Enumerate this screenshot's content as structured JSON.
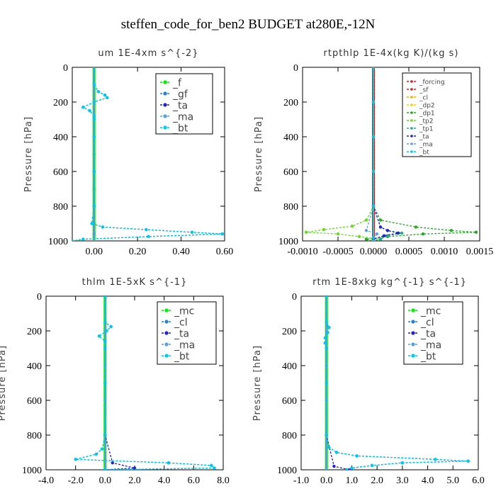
{
  "figure": {
    "title": "steffen_code_for_ben2  BUDGET at280E,-12N"
  },
  "chart_data": [
    {
      "type": "line",
      "title": "um  1E-4xm s^{-2}",
      "xlabel": "",
      "ylabel": "Pressure [hPa]",
      "xlim": [
        -0.1,
        0.6
      ],
      "ylim": [
        1000,
        0
      ],
      "xticks": [
        "0.00",
        "0.20",
        "0.40",
        "0.60"
      ],
      "xtick_values": [
        0.0,
        0.2,
        0.4,
        0.6
      ],
      "yticks": [
        "0",
        "200",
        "400",
        "600",
        "800",
        "1000"
      ],
      "ytick_values": [
        0,
        200,
        400,
        600,
        800,
        1000
      ],
      "legend_position": "top-right",
      "legend_size": "large",
      "series": [
        {
          "name": "_f",
          "color": "#00ee00",
          "y": [
            0,
            100,
            200,
            300,
            400,
            500,
            600,
            700,
            800,
            900,
            960,
            1000
          ],
          "x": [
            0,
            0,
            0,
            0,
            0,
            0,
            0,
            0,
            0,
            0,
            0,
            0
          ]
        },
        {
          "name": "_gf",
          "color": "#2a7fd4",
          "y": [
            0,
            100,
            140,
            160,
            175,
            200,
            230,
            250,
            280,
            300,
            400,
            600,
            800,
            900,
            920,
            935,
            950,
            960,
            975,
            990,
            1000
          ],
          "x": [
            0,
            0,
            0.02,
            0.05,
            0.06,
            0.0,
            -0.05,
            -0.02,
            0,
            0,
            0,
            0,
            0,
            -0.01,
            0.04,
            0.24,
            0.45,
            0.59,
            0.25,
            -0.05,
            -0.1
          ]
        },
        {
          "name": "_ta",
          "color": "#2222cc",
          "y": [
            0,
            200,
            400,
            600,
            800,
            960,
            1000
          ],
          "x": [
            0,
            0,
            0,
            0,
            0,
            0,
            0
          ]
        },
        {
          "name": "_ma",
          "color": "#5aa0e0",
          "y": [
            0,
            200,
            400,
            600,
            800,
            960,
            1000
          ],
          "x": [
            0,
            0,
            0,
            0,
            0,
            0,
            0
          ]
        },
        {
          "name": "_bt",
          "color": "#00c8f0",
          "y": [
            0,
            100,
            140,
            160,
            175,
            200,
            230,
            250,
            280,
            300,
            400,
            600,
            800,
            900,
            920,
            935,
            950,
            960,
            975,
            990,
            1000
          ],
          "x": [
            0,
            0,
            0.02,
            0.05,
            0.06,
            0.0,
            -0.05,
            -0.02,
            0,
            0,
            0,
            0,
            0,
            -0.01,
            0.04,
            0.24,
            0.45,
            0.59,
            0.25,
            -0.05,
            -0.1
          ]
        }
      ]
    },
    {
      "type": "line",
      "title": "rtpthlp  1E-4x(kg K)/(kg s)",
      "xlabel": "",
      "ylabel": "Pressure [hPa]",
      "xlim": [
        -0.001,
        0.0015
      ],
      "ylim": [
        1000,
        0
      ],
      "xticks": [
        "-0.0010",
        "-0.0005",
        "0.0000",
        "0.0005",
        "0.0010",
        "0.0015"
      ],
      "xtick_values": [
        -0.001,
        -0.0005,
        0.0,
        0.0005,
        0.001,
        0.0015
      ],
      "yticks": [
        "0",
        "200",
        "400",
        "600",
        "800",
        "1000"
      ],
      "ytick_values": [
        0,
        200,
        400,
        600,
        800,
        1000
      ],
      "legend_position": "top-right",
      "legend_size": "small",
      "series": [
        {
          "name": "_forcing",
          "color": "#cc2222",
          "y": [
            0,
            200,
            400,
            600,
            800,
            1000
          ],
          "x": [
            0,
            0,
            0,
            0,
            0,
            0
          ]
        },
        {
          "name": "_sf",
          "color": "#cc2222",
          "y": [
            0,
            200,
            400,
            600,
            800,
            1000
          ],
          "x": [
            0,
            0,
            0,
            0,
            0,
            0
          ]
        },
        {
          "name": "_cl",
          "color": "#ffaa00",
          "y": [
            0,
            200,
            400,
            600,
            800,
            1000
          ],
          "x": [
            0,
            0,
            0,
            0,
            0,
            0
          ]
        },
        {
          "name": "_dp2",
          "color": "#ffd000",
          "y": [
            0,
            200,
            400,
            600,
            800,
            1000
          ],
          "x": [
            0,
            0,
            0,
            0,
            0,
            0
          ]
        },
        {
          "name": "_dp1",
          "color": "#22aa22",
          "y": [
            0,
            800,
            880,
            920,
            940,
            950,
            960,
            975,
            990,
            1000
          ],
          "x": [
            0,
            0,
            0.0001,
            0.0006,
            0.0011,
            0.00145,
            0.0007,
            0.0002,
            -0.0001,
            0
          ]
        },
        {
          "name": "_tp2",
          "color": "#66dd22",
          "y": [
            0,
            800,
            880,
            915,
            935,
            950,
            960,
            975,
            990,
            1000
          ],
          "x": [
            0,
            0,
            -0.0001,
            -0.0003,
            -0.0007,
            -0.00095,
            -0.0005,
            -0.0002,
            0.0001,
            0
          ]
        },
        {
          "name": "_tp1",
          "color": "#22aa88",
          "y": [
            0,
            800,
            920,
            940,
            955,
            970,
            990,
            1000
          ],
          "x": [
            0,
            0,
            0.0001,
            0.0002,
            0.0004,
            0.0002,
            0.0001,
            0
          ]
        },
        {
          "name": "_ta",
          "color": "#2222cc",
          "y": [
            0,
            800,
            920,
            940,
            955,
            970,
            990,
            1000
          ],
          "x": [
            0,
            0,
            0.0001,
            0.0002,
            0.00035,
            0.00015,
            0,
            0
          ]
        },
        {
          "name": "_ma",
          "color": "#5aa0e0",
          "y": [
            0,
            800,
            940,
            960,
            980,
            1000
          ],
          "x": [
            0,
            0,
            -0.0001,
            5e-05,
            0,
            0
          ]
        },
        {
          "name": "_bt",
          "color": "#00c8f0",
          "y": [
            0,
            200,
            400,
            600,
            800,
            1000
          ],
          "x": [
            0,
            0,
            0,
            0,
            0,
            0
          ]
        }
      ]
    },
    {
      "type": "line",
      "title": "thlm  1E-5xK  s^{-1}",
      "xlabel": "",
      "ylabel": "Pressure [hPa]",
      "xlim": [
        -4.0,
        8.0
      ],
      "ylim": [
        1000,
        0
      ],
      "xticks": [
        "-4.0",
        "-2.0",
        "0.0",
        "2.0",
        "4.0",
        "6.0",
        "8.0"
      ],
      "xtick_values": [
        -4,
        -2,
        0,
        2,
        4,
        6,
        8
      ],
      "yticks": [
        "0",
        "200",
        "400",
        "600",
        "800",
        "1000"
      ],
      "ytick_values": [
        0,
        200,
        400,
        600,
        800,
        1000
      ],
      "legend_position": "top-right",
      "legend_size": "large",
      "series": [
        {
          "name": "_mc",
          "color": "#00ee00",
          "y": [
            0,
            200,
            400,
            600,
            800,
            1000
          ],
          "x": [
            0,
            0,
            0,
            0,
            0,
            0
          ]
        },
        {
          "name": "_cl",
          "color": "#2a7fd4",
          "y": [
            0,
            150,
            175,
            200,
            230,
            260,
            300,
            500,
            800,
            880,
            910,
            940,
            960,
            975,
            990,
            1000
          ],
          "x": [
            0,
            0,
            0.4,
            0.1,
            -0.4,
            0,
            0,
            0,
            0,
            -0.2,
            -0.6,
            -2.0,
            4.3,
            7.2,
            7.4,
            0
          ]
        },
        {
          "name": "_ta",
          "color": "#2222cc",
          "y": [
            0,
            800,
            960,
            990,
            1000
          ],
          "x": [
            0,
            0,
            0.5,
            2.0,
            0
          ]
        },
        {
          "name": "_ma",
          "color": "#5aa0e0",
          "y": [
            0,
            200,
            400,
            600,
            800,
            1000
          ],
          "x": [
            0,
            0,
            0,
            0,
            0,
            0
          ]
        },
        {
          "name": "_bt",
          "color": "#00c8f0",
          "y": [
            0,
            150,
            175,
            200,
            230,
            260,
            300,
            500,
            800,
            880,
            910,
            940,
            960,
            975,
            990,
            1000
          ],
          "x": [
            0,
            0,
            0.4,
            0.1,
            -0.4,
            0,
            0,
            0,
            0,
            -0.2,
            -0.6,
            -2.0,
            4.3,
            7.2,
            7.4,
            0
          ]
        }
      ]
    },
    {
      "type": "line",
      "title": "rtm  1E-8xkg kg^{-1} s^{-1}",
      "xlabel": "",
      "ylabel": "Pressure [hPa]",
      "xlim": [
        -1.0,
        6.0
      ],
      "ylim": [
        1000,
        0
      ],
      "xticks": [
        "-1.0",
        "0.0",
        "1.0",
        "2.0",
        "3.0",
        "4.0",
        "5.0",
        "6.0"
      ],
      "xtick_values": [
        -1,
        0,
        1,
        2,
        3,
        4,
        5,
        6
      ],
      "yticks": [
        "0",
        "200",
        "400",
        "600",
        "800",
        "1000"
      ],
      "ytick_values": [
        0,
        200,
        400,
        600,
        800,
        1000
      ],
      "legend_position": "top-right",
      "legend_size": "large",
      "series": [
        {
          "name": "_mc",
          "color": "#00ee00",
          "y": [
            0,
            200,
            400,
            600,
            800,
            1000
          ],
          "x": [
            0,
            0,
            0,
            0,
            0,
            0
          ]
        },
        {
          "name": "_cl",
          "color": "#2a7fd4",
          "y": [
            0,
            150,
            180,
            210,
            240,
            270,
            300,
            500,
            800,
            870,
            900,
            920,
            940,
            950,
            960,
            975,
            990,
            1000
          ],
          "x": [
            0,
            0,
            0.1,
            0.05,
            -0.05,
            -0.05,
            0,
            0,
            0,
            0.1,
            0.4,
            1.2,
            4.3,
            5.6,
            3.0,
            1.8,
            1.0,
            0.8
          ]
        },
        {
          "name": "_ta",
          "color": "#2222cc",
          "y": [
            0,
            800,
            980,
            1000
          ],
          "x": [
            0,
            0,
            0.3,
            0.9
          ]
        },
        {
          "name": "_ma",
          "color": "#5aa0e0",
          "y": [
            0,
            200,
            400,
            600,
            800,
            1000
          ],
          "x": [
            0,
            0,
            0,
            0,
            0,
            0
          ]
        },
        {
          "name": "_bt",
          "color": "#00c8f0",
          "y": [
            0,
            150,
            180,
            210,
            240,
            270,
            300,
            500,
            800,
            870,
            900,
            920,
            940,
            950,
            960,
            975,
            990,
            1000
          ],
          "x": [
            0,
            0,
            0.1,
            0.05,
            -0.05,
            -0.05,
            0,
            0,
            0,
            0.1,
            0.4,
            1.2,
            4.3,
            5.6,
            3.0,
            1.8,
            1.0,
            0.8
          ]
        }
      ]
    }
  ]
}
